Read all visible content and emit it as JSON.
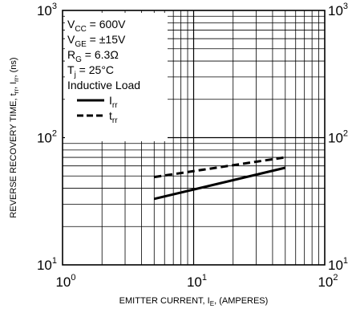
{
  "chart_data": {
    "type": "line",
    "scale": {
      "x": "log",
      "y": "log"
    },
    "xlim": [
      1,
      100
    ],
    "ylim": [
      10,
      1000
    ],
    "grid": true,
    "xlabel": {
      "main": "EMITTER CURRENT, I",
      "sub": "E",
      "tail": ", (AMPERES)"
    },
    "ylabel": {
      "main": "REVERSE RECOVERY TIME, t",
      "sub1": "rr",
      "mid": ", I",
      "sub2": "rr",
      "tail": ", (ns)"
    },
    "x_ticks": [
      {
        "base": "10",
        "exp": "0"
      },
      {
        "base": "10",
        "exp": "1"
      },
      {
        "base": "10",
        "exp": "2"
      }
    ],
    "y_ticks_left": [
      {
        "base": "10",
        "exp": "1"
      },
      {
        "base": "10",
        "exp": "2"
      },
      {
        "base": "10",
        "exp": "3"
      }
    ],
    "y_ticks_right": [
      {
        "base": "10",
        "exp": "1"
      },
      {
        "base": "10",
        "exp": "2"
      },
      {
        "base": "10",
        "exp": "3"
      }
    ],
    "conditions": [
      {
        "main": "V",
        "sub": "CC",
        "tail": " = 600V"
      },
      {
        "main": "V",
        "sub": "GE",
        "tail": " = ±15V"
      },
      {
        "main": "R",
        "sub": "G",
        "tail": " = 6.3Ω"
      },
      {
        "main": "T",
        "sub": "j",
        "tail": " = 25°C"
      },
      {
        "main": "Inductive Load",
        "sub": "",
        "tail": ""
      }
    ],
    "legend_position": "top-left",
    "series": [
      {
        "name": {
          "main": "I",
          "sub": "rr"
        },
        "style": "solid",
        "x": [
          5,
          50
        ],
        "y": [
          33,
          58
        ]
      },
      {
        "name": {
          "main": "t",
          "sub": "rr"
        },
        "style": "dashed",
        "x": [
          5,
          50
        ],
        "y": [
          49,
          70
        ]
      }
    ]
  }
}
